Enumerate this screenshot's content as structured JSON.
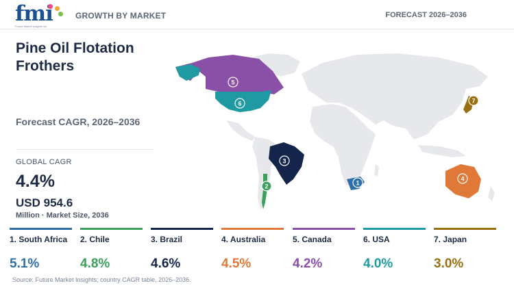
{
  "header": {
    "logo_text": "fmi",
    "logo_tagline": "Future Market Insights inc.",
    "section_label": "GROWTH BY MARKET",
    "forecast_label": "FORECAST 2026–2036"
  },
  "hero": {
    "title": "Pine Oil Flotation Frothers",
    "cagr_label": "Forecast CAGR, 2026–2036",
    "global_cagr_label": "GLOBAL CAGR",
    "global_cagr_value": "4.4%",
    "market_size_value": "USD 954.6",
    "market_size_note": "Million · Market Size, 2036"
  },
  "colors": {
    "south_africa": "#2f6fa8",
    "chile": "#3aa05a",
    "brazil": "#14244a",
    "australia": "#e07838",
    "canada": "#8a4fa6",
    "usa": "#1f9aa3",
    "japan": "#9a6f12",
    "land": "#e6e8eb"
  },
  "map": {
    "markers": [
      {
        "label": "1",
        "region": "South Africa"
      },
      {
        "label": "2",
        "region": "Chile"
      },
      {
        "label": "3",
        "region": "Brazil"
      },
      {
        "label": "4",
        "region": "Australia"
      },
      {
        "label": "5",
        "region": "Canada"
      },
      {
        "label": "6",
        "region": "USA"
      },
      {
        "label": "7",
        "region": "Japan"
      }
    ]
  },
  "countries": [
    {
      "name": "1. South Africa",
      "cagr": "5.1%",
      "color": "#2f6fa8"
    },
    {
      "name": "2. Chile",
      "cagr": "4.8%",
      "color": "#3aa05a"
    },
    {
      "name": "3. Brazil",
      "cagr": "4.6%",
      "color": "#14244a"
    },
    {
      "name": "4. Australia",
      "cagr": "4.5%",
      "color": "#e07838"
    },
    {
      "name": "5. Canada",
      "cagr": "4.2%",
      "color": "#8a4fa6"
    },
    {
      "name": "6. USA",
      "cagr": "4.0%",
      "color": "#1f9aa3"
    },
    {
      "name": "7. Japan",
      "cagr": "3.0%",
      "color": "#9a6f12"
    }
  ],
  "footer": {
    "source": "Source: Future Market Insights; country CAGR table, 2026–2036."
  }
}
